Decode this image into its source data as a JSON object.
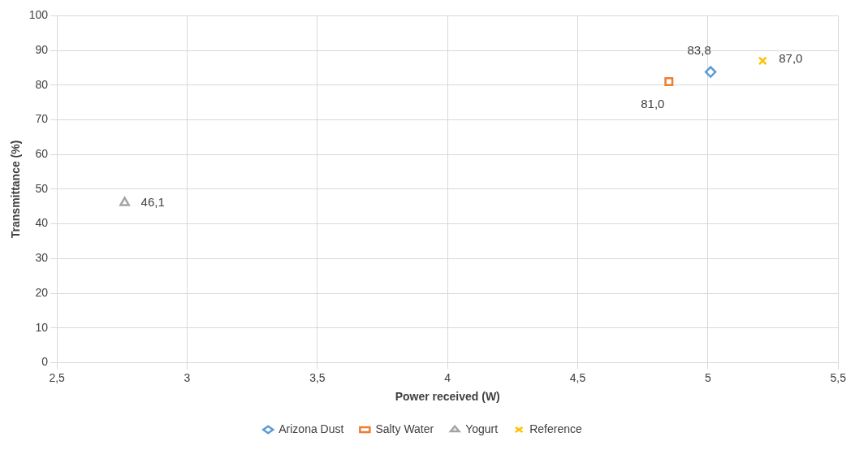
{
  "chart_data": {
    "type": "scatter",
    "xlabel": "Power received (W)",
    "ylabel": "Transmittance (%)",
    "xlim": [
      2.5,
      5.5
    ],
    "xticks": [
      {
        "value": 2.5,
        "label": "2,5"
      },
      {
        "value": 3,
        "label": "3"
      },
      {
        "value": 3.5,
        "label": "3,5"
      },
      {
        "value": 4,
        "label": "4"
      },
      {
        "value": 4.5,
        "label": "4,5"
      },
      {
        "value": 5,
        "label": "5"
      },
      {
        "value": 5.5,
        "label": "5,5"
      }
    ],
    "ylim": [
      0,
      100
    ],
    "yticks": [
      0,
      10,
      20,
      30,
      40,
      50,
      60,
      70,
      80,
      90,
      100
    ],
    "grid": true,
    "legend": "bottom",
    "series": [
      {
        "name": "Arizona Dust",
        "color": "#5b9bd5",
        "marker": "diamond",
        "x": [
          5.01
        ],
        "values": [
          83.8
        ],
        "value_labels": [
          "83,8"
        ]
      },
      {
        "name": "Salty Water",
        "color": "#ed7d31",
        "marker": "square",
        "x": [
          4.85
        ],
        "values": [
          81.0
        ],
        "value_labels": [
          "81,0"
        ]
      },
      {
        "name": "Yogurt",
        "color": "#a5a5a5",
        "marker": "triangle",
        "x": [
          2.76
        ],
        "values": [
          46.1
        ],
        "value_labels": [
          "46,1"
        ]
      },
      {
        "name": "Reference",
        "color": "#ffc000",
        "marker": "cross",
        "x": [
          5.21
        ],
        "values": [
          87.0
        ],
        "value_labels": [
          "87,0"
        ]
      }
    ]
  }
}
